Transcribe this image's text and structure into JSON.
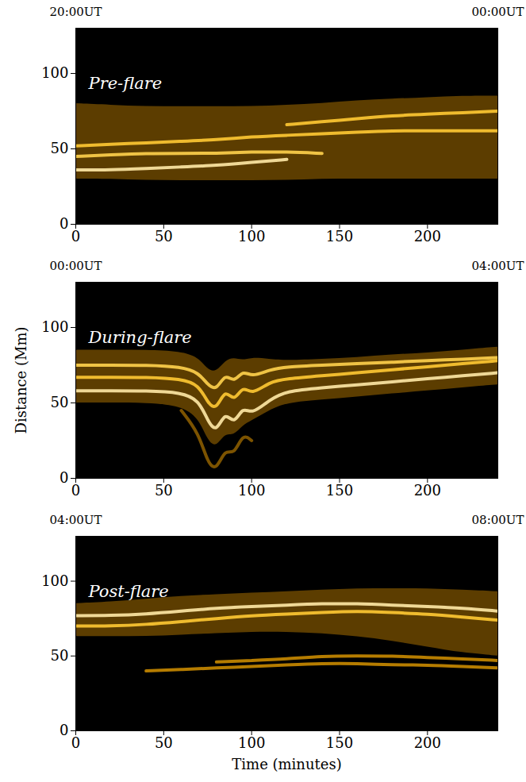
{
  "chart_data": [
    {
      "type": "line",
      "title": "Pre-flare",
      "annotations": [
        {
          "text": "20:00UT",
          "x": 0
        },
        {
          "text": "00:00UT",
          "x": 240
        }
      ],
      "x": [
        0,
        20,
        40,
        60,
        80,
        100,
        120,
        140,
        160,
        180,
        200,
        220,
        240
      ],
      "xlim": [
        0,
        240
      ],
      "xticks": [
        0,
        50,
        100,
        150,
        200
      ],
      "ylim": [
        0,
        130
      ],
      "yticks": [
        0,
        50,
        100
      ],
      "series": [
        {
          "type": "band",
          "color": "#a86f00",
          "lower": [
            30,
            30,
            29,
            29,
            29,
            29,
            29,
            30,
            30,
            30,
            30,
            30,
            30
          ],
          "upper": [
            80,
            79,
            78,
            78,
            78,
            78,
            79,
            80,
            82,
            83,
            84,
            85,
            85
          ]
        },
        {
          "color": "#ffd24d",
          "values": [
            45,
            46,
            47,
            47,
            47,
            48,
            48,
            47,
            null,
            null,
            null,
            null,
            null
          ]
        },
        {
          "color": "#ffe9a6",
          "values": [
            36,
            36,
            37,
            38,
            39,
            41,
            43,
            null,
            null,
            null,
            null,
            null,
            null
          ]
        },
        {
          "color": "#ffc933",
          "values": [
            52,
            53,
            54,
            55,
            56,
            58,
            59,
            60,
            61,
            62,
            62,
            62,
            62
          ]
        },
        {
          "color": "#ffc933",
          "values": [
            null,
            null,
            null,
            null,
            null,
            null,
            66,
            68,
            70,
            72,
            73,
            74,
            75
          ]
        }
      ]
    },
    {
      "type": "line",
      "title": "During-flare",
      "ylabel": "Distance (Mm)",
      "annotations": [
        {
          "text": "00:00UT",
          "x": 0
        },
        {
          "text": "04:00UT",
          "x": 240
        }
      ],
      "x": [
        0,
        20,
        40,
        60,
        70,
        75,
        80,
        85,
        90,
        95,
        100,
        110,
        120,
        140,
        160,
        180,
        200,
        220,
        240
      ],
      "xlim": [
        0,
        240
      ],
      "xticks": [
        0,
        50,
        100,
        150,
        200
      ],
      "ylim": [
        0,
        130
      ],
      "yticks": [
        0,
        50,
        100
      ],
      "series": [
        {
          "type": "band",
          "color": "#a86f00",
          "lower": [
            50,
            50,
            50,
            48,
            40,
            25,
            20,
            30,
            28,
            35,
            38,
            45,
            50,
            52,
            54,
            56,
            58,
            60,
            62
          ],
          "upper": [
            85,
            85,
            85,
            84,
            80,
            72,
            70,
            78,
            80,
            78,
            80,
            79,
            78,
            79,
            80,
            82,
            83,
            85,
            87
          ]
        },
        {
          "color": "#ffe9a6",
          "values": [
            58,
            58,
            58,
            57,
            52,
            38,
            30,
            45,
            35,
            48,
            42,
            52,
            58,
            60,
            62,
            64,
            66,
            68,
            70
          ]
        },
        {
          "color": "#ffc933",
          "values": [
            67,
            67,
            67,
            66,
            62,
            50,
            45,
            60,
            50,
            62,
            55,
            64,
            66,
            68,
            70,
            72,
            74,
            76,
            78
          ]
        },
        {
          "color": "#ffd24d",
          "values": [
            75,
            75,
            75,
            74,
            70,
            62,
            58,
            70,
            63,
            72,
            67,
            72,
            74,
            75,
            76,
            77,
            78,
            79,
            80
          ]
        },
        {
          "color": "#8a5c00",
          "values": [
            null,
            null,
            null,
            45,
            30,
            10,
            5,
            20,
            15,
            30,
            25,
            null,
            null,
            null,
            null,
            null,
            null,
            null,
            null
          ]
        }
      ]
    },
    {
      "type": "line",
      "title": "Post-flare",
      "xlabel": "Time (minutes)",
      "annotations": [
        {
          "text": "04:00UT",
          "x": 0
        },
        {
          "text": "08:00UT",
          "x": 240
        }
      ],
      "x": [
        0,
        20,
        40,
        60,
        80,
        100,
        120,
        140,
        160,
        180,
        200,
        220,
        240
      ],
      "xlim": [
        0,
        240
      ],
      "xticks": [
        0,
        50,
        100,
        150,
        200
      ],
      "ylim": [
        0,
        130
      ],
      "yticks": [
        0,
        50,
        100
      ],
      "series": [
        {
          "type": "band",
          "color": "#a86f00",
          "lower": [
            63,
            63,
            63,
            64,
            65,
            66,
            66,
            65,
            63,
            60,
            56,
            52,
            50
          ],
          "upper": [
            85,
            86,
            88,
            90,
            91,
            92,
            93,
            94,
            95,
            95,
            95,
            94,
            93
          ]
        },
        {
          "color": "#ffe9a6",
          "values": [
            77,
            77,
            78,
            80,
            82,
            83,
            84,
            85,
            85,
            84,
            83,
            82,
            80
          ]
        },
        {
          "color": "#ffc933",
          "values": [
            70,
            70,
            71,
            73,
            75,
            77,
            78,
            79,
            80,
            79,
            78,
            76,
            74
          ]
        },
        {
          "color": "#c98a00",
          "values": [
            null,
            null,
            40,
            41,
            42,
            43,
            44,
            45,
            45,
            44,
            44,
            43,
            42
          ]
        },
        {
          "color": "#c98a00",
          "values": [
            null,
            null,
            null,
            null,
            46,
            47,
            48,
            50,
            50,
            50,
            49,
            48,
            47
          ]
        }
      ]
    }
  ]
}
